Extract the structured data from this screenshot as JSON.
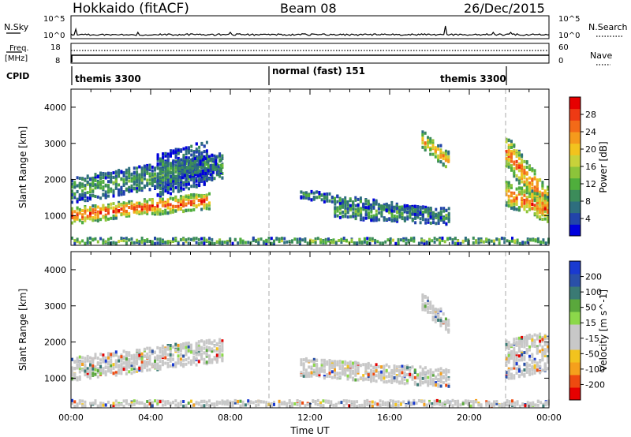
{
  "header": {
    "station": "Hokkaido (fitACF)",
    "beam": "Beam 08",
    "date": "26/Dec/2015"
  },
  "top_panels": {
    "nsky_label": "N.Sky",
    "nsky_ticks": [
      "10^5",
      "10^0"
    ],
    "nsearch_label": "N.Search",
    "nsearch_ticks": [
      "10^5",
      "10^0"
    ],
    "freq_label": "Freq.",
    "freq_unit": "[MHz]",
    "freq_ticks": [
      "18",
      "8"
    ],
    "nave_label": "Nave",
    "nave_ticks": [
      "60",
      "0"
    ],
    "cpid_label": "CPID",
    "cpid_segments": [
      {
        "label": "themis 3300",
        "start_hour": 0,
        "end_hour": 10
      },
      {
        "label": "normal (fast) 151",
        "start_hour": 10,
        "end_hour": 22
      },
      {
        "label": "themis 3300",
        "start_hour": 22,
        "end_hour": 24
      }
    ]
  },
  "chart_data": [
    {
      "type": "heatmap",
      "title": "",
      "ylabel": "Slant Range [km]",
      "xlabel": "",
      "x_ticks": [
        "00:00",
        "04:00",
        "08:00",
        "12:00",
        "16:00",
        "20:00",
        "00:00"
      ],
      "y_ticks": [
        1000,
        2000,
        3000,
        4000
      ],
      "xlim_hours": [
        0,
        24
      ],
      "ylim": [
        180,
        4500
      ],
      "mode_change_hours": [
        10,
        22
      ],
      "colorbar": {
        "label": "Power [dB]",
        "ticks": [
          "28",
          "24",
          "20",
          "16",
          "12",
          "8",
          "4"
        ],
        "colors": [
          "#0000dd",
          "#2244aa",
          "#2e6e7e",
          "#3c8c5a",
          "#4fae3c",
          "#8cc43a",
          "#c8d23a",
          "#f2c31e",
          "#f59a1c",
          "#f36a18",
          "#ee3a14",
          "#e60000"
        ]
      },
      "clusters": [
        {
          "t0": 0.0,
          "t1": 7.0,
          "r_base": 1000,
          "r_slope": 60,
          "r_width": 450,
          "level": 0.9
        },
        {
          "t0": 0.0,
          "t1": 7.6,
          "r_base": 1700,
          "r_slope": 90,
          "r_width": 700,
          "level": 0.35
        },
        {
          "t0": 4.3,
          "t1": 6.8,
          "r_base": 2100,
          "r_slope": 150,
          "r_width": 1200,
          "level": 0.3
        },
        {
          "t0": 5.4,
          "t1": 7.6,
          "r_base": 2300,
          "r_slope": 40,
          "r_width": 500,
          "level": 0.25
        },
        {
          "t0": 13.2,
          "t1": 19.0,
          "r_base": 1150,
          "r_slope": -30,
          "r_width": 450,
          "level": 0.35
        },
        {
          "t0": 11.5,
          "t1": 18.6,
          "r_base": 1600,
          "r_slope": -80,
          "r_width": 250,
          "level": 0.3
        },
        {
          "t0": 17.6,
          "t1": 19.0,
          "r_base": 3100,
          "r_slope": -450,
          "r_width": 500,
          "level": 0.7
        },
        {
          "t0": 21.8,
          "t1": 24.0,
          "r_base": 2800,
          "r_slope": -700,
          "r_width": 900,
          "level": 0.8
        },
        {
          "t0": 21.8,
          "t1": 24.0,
          "r_base": 1600,
          "r_slope": -200,
          "r_width": 700,
          "level": 0.85
        },
        {
          "t0": 0.0,
          "t1": 24.0,
          "r_base": 300,
          "r_slope": 0,
          "r_width": 160,
          "level": 0.45
        }
      ]
    },
    {
      "type": "heatmap",
      "title": "",
      "ylabel": "Slant Range [km]",
      "xlabel": "Time UT",
      "x_ticks": [
        "00:00",
        "04:00",
        "08:00",
        "12:00",
        "16:00",
        "20:00",
        "00:00"
      ],
      "y_ticks": [
        1000,
        2000,
        3000,
        4000
      ],
      "xlim_hours": [
        0,
        24
      ],
      "ylim": [
        180,
        4500
      ],
      "mode_change_hours": [
        10,
        22
      ],
      "colorbar": {
        "label": "Velocity [m s^-1]",
        "ticks": [
          "200",
          "100",
          "50",
          "15",
          "-15",
          "-50",
          "-100",
          "-200"
        ],
        "colors": [
          "#e60000",
          "#ee4a10",
          "#f5a01c",
          "#f2c31e",
          "#c8c8c8",
          "#c8c8c8",
          "#8cd84a",
          "#5aa83c",
          "#3a7a74",
          "#2a50a8",
          "#1a3ad0"
        ]
      },
      "clusters": [
        {
          "t0": 0.0,
          "t1": 7.6,
          "r_base": 1250,
          "r_slope": 70,
          "r_width": 650,
          "level": 0.5
        },
        {
          "t0": 11.5,
          "t1": 19.0,
          "r_base": 1300,
          "r_slope": -40,
          "r_width": 500,
          "level": 0.3
        },
        {
          "t0": 17.6,
          "t1": 19.0,
          "r_base": 3100,
          "r_slope": -450,
          "r_width": 500,
          "level": 0.65
        },
        {
          "t0": 21.8,
          "t1": 24.0,
          "r_base": 1500,
          "r_slope": 120,
          "r_width": 1100,
          "level": 0.5
        },
        {
          "t0": 0.0,
          "t1": 24.0,
          "r_base": 300,
          "r_slope": 0,
          "r_width": 160,
          "level": 0.3
        }
      ]
    }
  ]
}
